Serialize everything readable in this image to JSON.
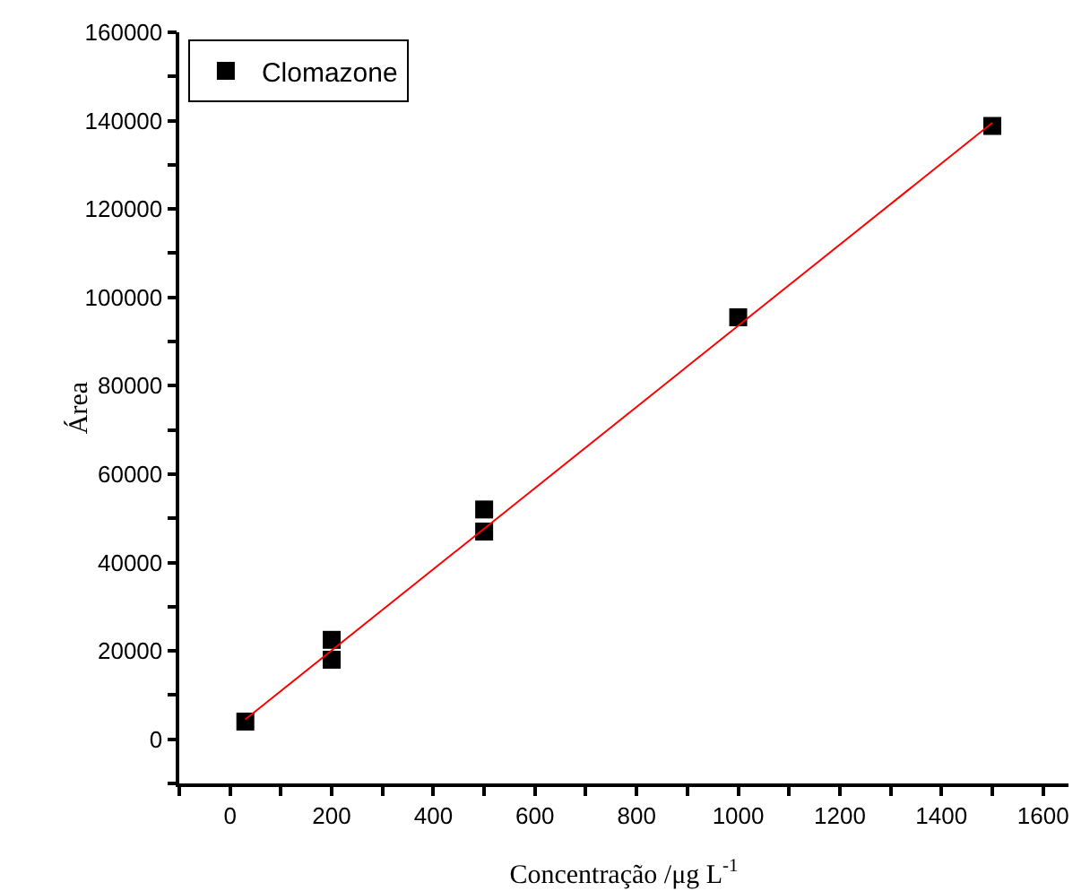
{
  "chart_data": {
    "type": "scatter",
    "xlabel": "Concentração /μg L$^{-1}$",
    "ylabel": "Área",
    "xlim": [
      -100,
      1650
    ],
    "ylim": [
      -10000,
      160000
    ],
    "xticks": [
      {
        "value": -100,
        "label": null
      },
      0,
      {
        "value": 100,
        "label": null
      },
      200,
      {
        "value": 300,
        "label": null
      },
      400,
      {
        "value": 500,
        "label": null
      },
      600,
      {
        "value": 700,
        "label": null
      },
      800,
      {
        "value": 900,
        "label": null
      },
      1000,
      {
        "value": 1100,
        "label": null
      },
      1200,
      {
        "value": 1300,
        "label": null
      },
      1400,
      {
        "value": 1500,
        "label": null
      },
      1600
    ],
    "yticks": [
      {
        "value": -10000,
        "label": null
      },
      0,
      {
        "value": 10000,
        "label": null
      },
      20000,
      {
        "value": 30000,
        "label": null
      },
      40000,
      {
        "value": 50000,
        "label": null
      },
      60000,
      {
        "value": 70000,
        "label": null
      },
      80000,
      {
        "value": 90000,
        "label": null
      },
      100000,
      {
        "value": 110000,
        "label": null
      },
      120000,
      {
        "value": 130000,
        "label": null
      },
      140000,
      {
        "value": 150000,
        "label": null
      },
      160000
    ],
    "grid": false,
    "legend": "top left",
    "marker": "square",
    "series": [
      {
        "name": "Clomazone",
        "color": "#000000",
        "x": [
          30,
          200,
          200,
          500,
          500,
          1000,
          1500
        ],
        "values": [
          4000,
          22500,
          18000,
          52000,
          47000,
          95500,
          138800
        ]
      },
      {
        "type": "line",
        "color": "#ff0000",
        "line_style": "solid",
        "marker": "none",
        "x": [
          30,
          1500
        ],
        "values": [
          4500,
          139500
        ]
      }
    ]
  }
}
